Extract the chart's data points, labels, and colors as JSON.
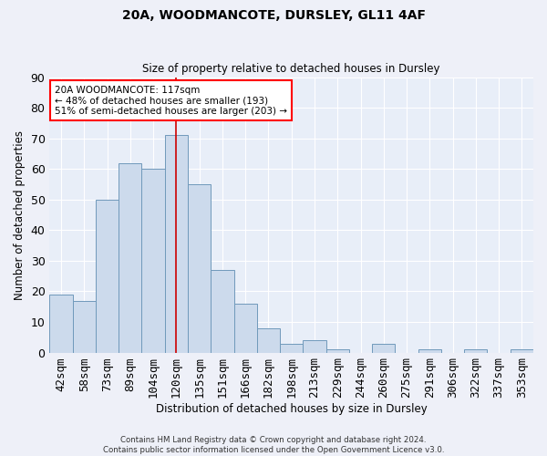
{
  "title1": "20A, WOODMANCOTE, DURSLEY, GL11 4AF",
  "title2": "Size of property relative to detached houses in Dursley",
  "xlabel": "Distribution of detached houses by size in Dursley",
  "ylabel": "Number of detached properties",
  "categories": [
    "42sqm",
    "58sqm",
    "73sqm",
    "89sqm",
    "104sqm",
    "120sqm",
    "135sqm",
    "151sqm",
    "166sqm",
    "182sqm",
    "198sqm",
    "213sqm",
    "229sqm",
    "244sqm",
    "260sqm",
    "275sqm",
    "291sqm",
    "306sqm",
    "322sqm",
    "337sqm",
    "353sqm"
  ],
  "values": [
    19,
    17,
    50,
    62,
    60,
    71,
    55,
    27,
    16,
    8,
    3,
    4,
    1,
    0,
    3,
    0,
    1,
    0,
    1,
    0,
    1
  ],
  "bar_color": "#ccdaec",
  "bar_edge_color": "#7099bb",
  "background_color": "#e8eef8",
  "grid_color": "#ffffff",
  "vline_x": 5,
  "vline_color": "#cc0000",
  "annotation_text": "20A WOODMANCOTE: 117sqm\n← 48% of detached houses are smaller (193)\n51% of semi-detached houses are larger (203) →",
  "annotation_box_color": "red",
  "ylim": [
    0,
    90
  ],
  "yticks": [
    0,
    10,
    20,
    30,
    40,
    50,
    60,
    70,
    80,
    90
  ],
  "footer1": "Contains HM Land Registry data © Crown copyright and database right 2024.",
  "footer2": "Contains public sector information licensed under the Open Government Licence v3.0."
}
